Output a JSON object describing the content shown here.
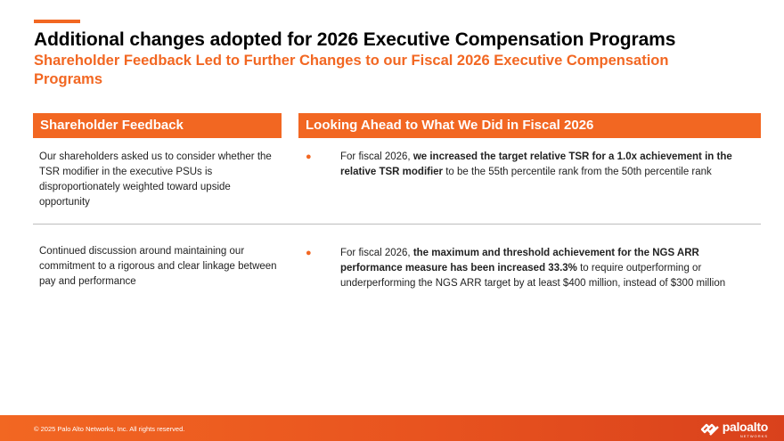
{
  "slide": {
    "title": "Additional changes adopted for 2026 Executive Compensation Programs",
    "subtitle": "Shareholder Feedback Led to Further Changes to our Fiscal 2026 Executive Compensation Programs"
  },
  "columns": {
    "left_header": "Shareholder Feedback",
    "right_header": "Looking Ahead to What We Did in Fiscal 2026"
  },
  "rows": [
    {
      "feedback": "Our shareholders asked us to consider whether the TSR modifier in the executive PSUs is disproportionately weighted toward upside opportunity",
      "bullet": "●",
      "action_prefix": "For fiscal 2026, ",
      "action_bold": "we increased the target relative TSR for a 1.0x achievement in the relative TSR modifier",
      "action_suffix": " to be the 55th percentile rank from the 50th percentile rank"
    },
    {
      "feedback": "Continued discussion around maintaining our commitment to a rigorous and clear linkage between pay and performance",
      "bullet": "●",
      "action_prefix": "For fiscal 2026, ",
      "action_bold": "the maximum and threshold achievement for the NGS ARR performance measure has been increased 33.3%",
      "action_suffix": " to require outperforming or underperforming the NGS ARR target by at least $400 million, instead of $300 million"
    }
  ],
  "footer": {
    "copyright": "© 2025 Palo Alto Networks, Inc. All rights reserved.",
    "logo_text": "paloalto",
    "logo_subtext": "NETWORKS"
  },
  "colors": {
    "accent": "#f26722",
    "footer_end": "#d9411c"
  }
}
